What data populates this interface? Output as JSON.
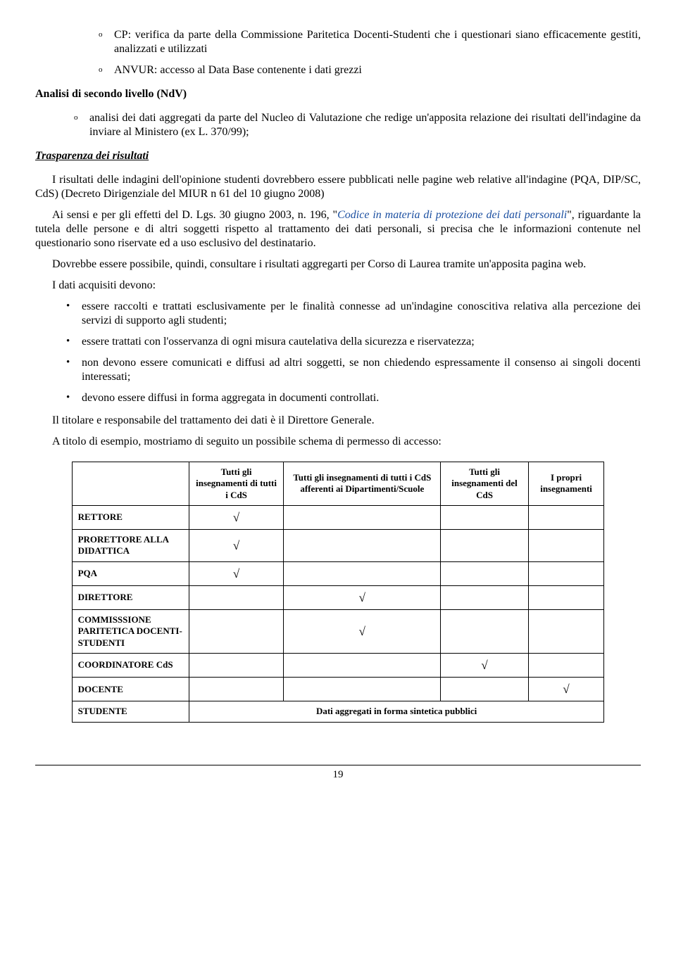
{
  "nested_list": [
    "CP: verifica da parte della Commissione Paritetica Docenti-Studenti che i questionari siano efficacemente gestiti, analizzati e utilizzati",
    "ANVUR: accesso al Data Base contenente i dati grezzi"
  ],
  "heading_ndv": "Analisi di secondo livello (NdV)",
  "outer_list": [
    "analisi dei dati aggregati da parte del Nucleo di Valutazione che redige un'apposita relazione dei risultati dell'indagine da inviare al Ministero (ex L. 370/99);"
  ],
  "heading_trasparenza": "Trasparenza dei risultati",
  "para1": "I risultati delle indagini dell'opinione studenti dovrebbero essere pubblicati nelle pagine web relative all'indagine (PQA, DIP/SC, CdS) (Decreto Dirigenziale del MIUR n 61 del 10 giugno 2008)",
  "para2_pre": "Ai sensi e per gli effetti del D. Lgs. 30 giugno 2003, n. 196, \"",
  "para2_em": "Codice in materia di protezione dei dati personali",
  "para2_post": "\", riguardante la tutela delle persone e di altri soggetti rispetto al trattamento dei dati personali, si precisa che le informazioni contenute nel questionario sono riservate ed a uso esclusivo del destinatario.",
  "para3": "Dovrebbe essere possibile, quindi, consultare i risultati aggregarti per Corso di Laurea tramite un'apposita pagina web.",
  "para4": "I dati acquisiti devono:",
  "bullets": [
    "essere raccolti e trattati esclusivamente per le finalità connesse ad un'indagine conoscitiva relativa alla percezione dei servizi di supporto agli studenti;",
    "essere trattati con l'osservanza di ogni misura cautelativa della sicurezza e riservatezza;",
    "non devono essere comunicati e diffusi ad altri soggetti, se non chiedendo espressamente il consenso ai singoli docenti interessati;",
    "devono essere diffusi in forma aggregata in documenti controllati."
  ],
  "para5": "Il titolare e responsabile del trattamento dei dati è il Direttore Generale.",
  "para6": "A titolo di esempio, mostriamo di seguito un possibile schema di permesso di accesso:",
  "table": {
    "columns": [
      "",
      "Tutti gli insegnamenti di tutti i CdS",
      "Tutti gli insegnamenti di tutti i CdS afferenti ai Dipartimenti/Scuole",
      "Tutti gli insegnamenti del CdS",
      "I propri insegnamenti"
    ],
    "rows": [
      {
        "role": "RETTORE",
        "marks": [
          "√",
          "",
          "",
          ""
        ]
      },
      {
        "role": "PRORETTORE ALLA DIDATTICA",
        "marks": [
          "√",
          "",
          "",
          ""
        ]
      },
      {
        "role": "PQA",
        "marks": [
          "√",
          "",
          "",
          ""
        ]
      },
      {
        "role": "DIRETTORE",
        "marks": [
          "",
          "√",
          "",
          ""
        ]
      },
      {
        "role": "COMMISSSIONE PARITETICA DOCENTI-STUDENTI",
        "marks": [
          "",
          "√",
          "",
          ""
        ]
      },
      {
        "role": "COORDINATORE CdS",
        "marks": [
          "",
          "",
          "√",
          ""
        ]
      },
      {
        "role": "DOCENTE",
        "marks": [
          "",
          "",
          "",
          "√"
        ]
      }
    ],
    "last_row_role": "STUDENTE",
    "last_row_note": "Dati aggregati in forma sintetica pubblici"
  },
  "page_number": "19",
  "marker_o": "o",
  "marker_bullet": "•"
}
